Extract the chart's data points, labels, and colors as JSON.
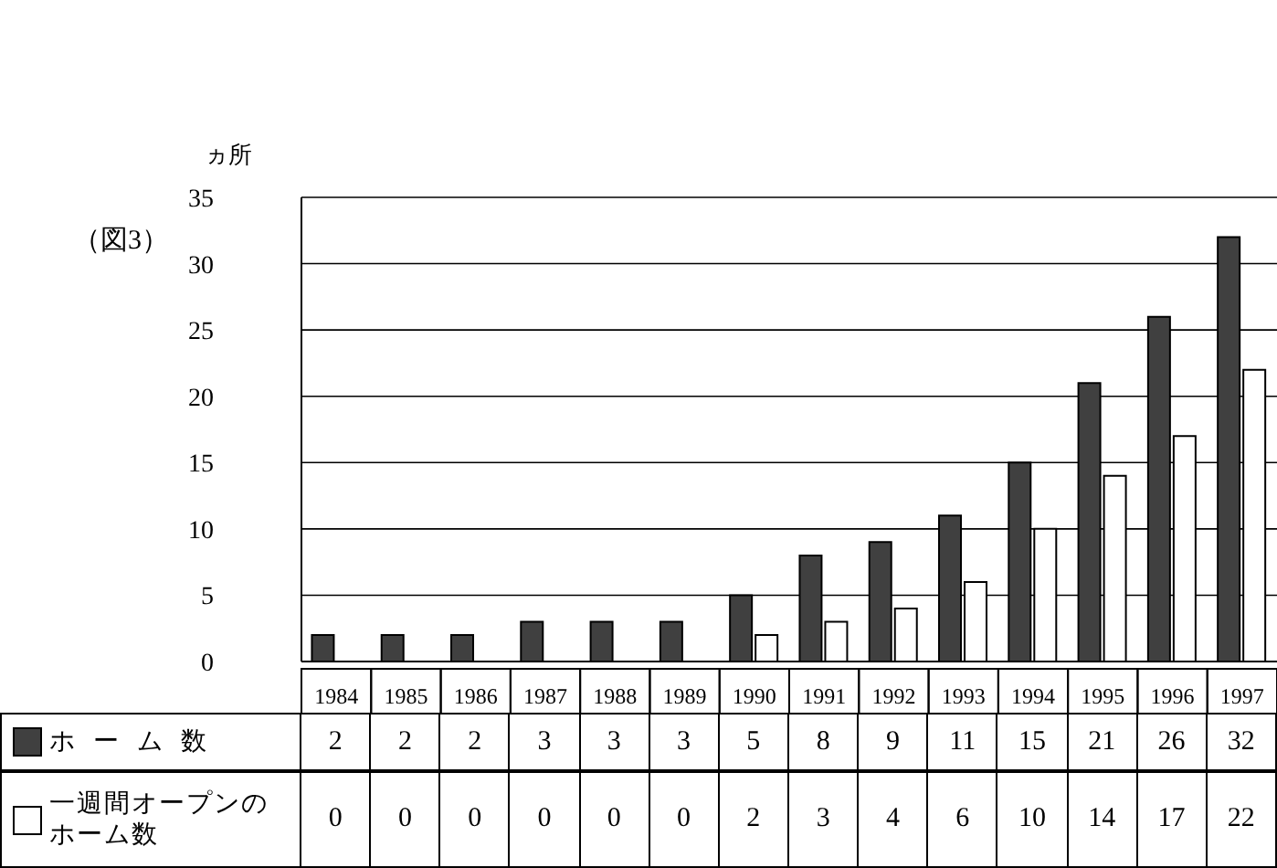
{
  "chart_data": {
    "type": "bar",
    "ylabel": "ヵ所",
    "annotations": [
      "（図3）"
    ],
    "categories": [
      "1984",
      "1985",
      "1986",
      "1987",
      "1988",
      "1989",
      "1990",
      "1991",
      "1992",
      "1993",
      "1994",
      "1995",
      "1996",
      "1997"
    ],
    "series": [
      {
        "name": "ホーム数",
        "color": "#404040",
        "values": [
          2,
          2,
          2,
          3,
          3,
          3,
          5,
          8,
          9,
          11,
          15,
          21,
          26,
          32
        ]
      },
      {
        "name": "一週間オープンのホーム数",
        "color": "#ffffff",
        "values": [
          0,
          0,
          0,
          0,
          0,
          0,
          2,
          3,
          4,
          6,
          10,
          14,
          17,
          22
        ]
      }
    ],
    "ylim": [
      0,
      35
    ],
    "yticks": [
      0,
      5,
      10,
      15,
      20,
      25,
      30,
      35
    ],
    "grid": "y",
    "legend": "bottom",
    "data_labels": true
  }
}
